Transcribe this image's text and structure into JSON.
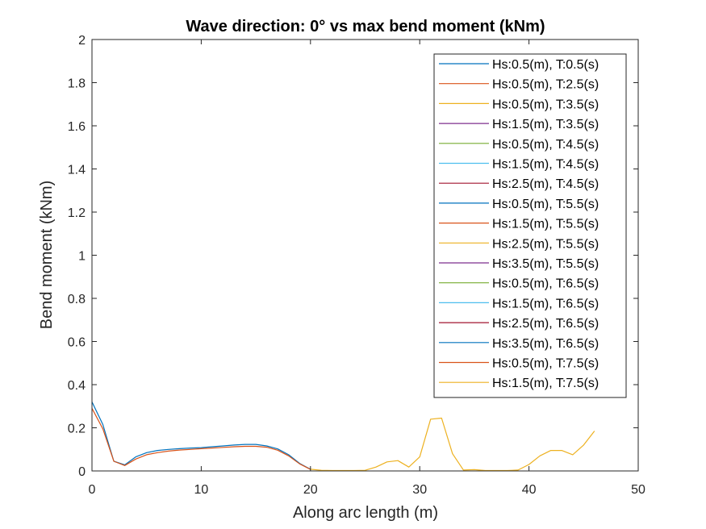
{
  "chart_data": {
    "type": "line",
    "title": "Wave direction: 0° vs max bend moment (kNm)",
    "xlabel": "Along arc length (m)",
    "ylabel": "Bend moment (kNm)",
    "xlim": [
      0,
      50
    ],
    "ylim": [
      0,
      2
    ],
    "xticks": [
      0,
      10,
      20,
      30,
      40,
      50
    ],
    "yticks": [
      0,
      0.2,
      0.4,
      0.6,
      0.8,
      1,
      1.2,
      1.4,
      1.6,
      1.8,
      2
    ],
    "grid": false,
    "legend_position": "top-right",
    "series": [
      {
        "name": "Hs:0.5(m), T:0.5(s)",
        "color": "#0072BD",
        "x": [
          0,
          1,
          2,
          3,
          4,
          5,
          6,
          7,
          8,
          9,
          10,
          11,
          12,
          13,
          14,
          15,
          16,
          17,
          18,
          19,
          20
        ],
        "y": [
          0.32,
          0.215,
          0.045,
          0.028,
          0.065,
          0.085,
          0.095,
          0.1,
          0.103,
          0.106,
          0.108,
          0.112,
          0.116,
          0.12,
          0.123,
          0.123,
          0.116,
          0.102,
          0.075,
          0.035,
          0.008
        ]
      },
      {
        "name": "Hs:0.5(m), T:2.5(s)",
        "color": "#D95319",
        "x": [
          0,
          1,
          2,
          3,
          4,
          5,
          6,
          7,
          8,
          9,
          10,
          11,
          12,
          13,
          14,
          15,
          16,
          17,
          18,
          19,
          20
        ],
        "y": [
          0.29,
          0.195,
          0.045,
          0.025,
          0.055,
          0.075,
          0.085,
          0.092,
          0.097,
          0.1,
          0.103,
          0.106,
          0.109,
          0.112,
          0.114,
          0.114,
          0.11,
          0.096,
          0.07,
          0.033,
          0.007
        ]
      },
      {
        "name": "Hs:0.5(m), T:3.5(s)",
        "color": "#EDB120",
        "x": [
          20,
          21,
          22,
          23,
          24,
          25,
          26,
          27,
          28,
          29,
          30,
          31,
          32,
          33,
          34,
          35,
          36,
          37,
          38,
          39,
          40,
          41,
          42,
          43,
          44,
          45,
          46
        ],
        "y": [
          0.008,
          0.003,
          0.002,
          0.002,
          0.002,
          0.003,
          0.018,
          0.042,
          0.048,
          0.018,
          0.065,
          0.24,
          0.245,
          0.08,
          0.004,
          0.006,
          0.002,
          0.002,
          0.002,
          0.004,
          0.03,
          0.07,
          0.095,
          0.095,
          0.075,
          0.12,
          0.185
        ]
      },
      {
        "name": "Hs:1.5(m), T:3.5(s)",
        "color": "#7E2F8E",
        "x": [],
        "y": []
      },
      {
        "name": "Hs:0.5(m), T:4.5(s)",
        "color": "#77AC30",
        "x": [],
        "y": []
      },
      {
        "name": "Hs:1.5(m), T:4.5(s)",
        "color": "#4DBEEE",
        "x": [],
        "y": []
      },
      {
        "name": "Hs:2.5(m), T:4.5(s)",
        "color": "#A2142F",
        "x": [],
        "y": []
      },
      {
        "name": "Hs:0.5(m), T:5.5(s)",
        "color": "#0072BD",
        "x": [],
        "y": []
      },
      {
        "name": "Hs:1.5(m), T:5.5(s)",
        "color": "#D95319",
        "x": [],
        "y": []
      },
      {
        "name": "Hs:2.5(m), T:5.5(s)",
        "color": "#EDB120",
        "x": [],
        "y": []
      },
      {
        "name": "Hs:3.5(m), T:5.5(s)",
        "color": "#7E2F8E",
        "x": [],
        "y": []
      },
      {
        "name": "Hs:0.5(m), T:6.5(s)",
        "color": "#77AC30",
        "x": [],
        "y": []
      },
      {
        "name": "Hs:1.5(m), T:6.5(s)",
        "color": "#4DBEEE",
        "x": [],
        "y": []
      },
      {
        "name": "Hs:2.5(m), T:6.5(s)",
        "color": "#A2142F",
        "x": [],
        "y": []
      },
      {
        "name": "Hs:3.5(m), T:6.5(s)",
        "color": "#0072BD",
        "x": [],
        "y": []
      },
      {
        "name": "Hs:0.5(m), T:7.5(s)",
        "color": "#D95319",
        "x": [],
        "y": []
      },
      {
        "name": "Hs:1.5(m), T:7.5(s)",
        "color": "#EDB120",
        "x": [],
        "y": []
      }
    ]
  }
}
